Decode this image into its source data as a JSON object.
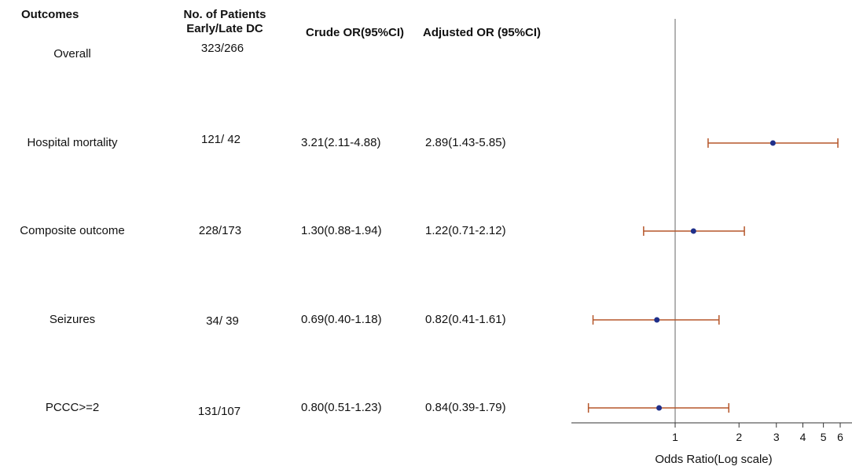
{
  "headers": {
    "outcomes": "Outcomes",
    "patients_line1": "No. of Patients",
    "patients_line2": "Early/Late DC",
    "crude": "Crude OR(95%CI)",
    "adjusted": "Adjusted OR (95%CI)"
  },
  "overall": {
    "label": "Overall",
    "patients": "323/266"
  },
  "rows": [
    {
      "label": "Hospital mortality",
      "patients": "121/ 42",
      "crude": "3.21(2.11-4.88)",
      "adjusted": "2.89(1.43-5.85)"
    },
    {
      "label": "Composite outcome",
      "patients": "228/173",
      "crude": "1.30(0.88-1.94)",
      "adjusted": "1.22(0.71-2.12)"
    },
    {
      "label": "Seizures",
      "patients": "34/ 39",
      "crude": "0.69(0.40-1.18)",
      "adjusted": "0.82(0.41-1.61)"
    },
    {
      "label": "PCCC>=2",
      "patients": "131/107",
      "crude": "0.80(0.51-1.23)",
      "adjusted": "0.84(0.39-1.79)"
    }
  ],
  "chart_data": {
    "type": "forest",
    "xlabel": "Odds Ratio(Log scale)",
    "x_scale": "log",
    "x_ticks": [
      1,
      2,
      3,
      4,
      5,
      6
    ],
    "xlim": [
      0.37,
      6.5
    ],
    "reference_line": 1,
    "categories": [
      "Hospital mortality",
      "Composite outcome",
      "Seizures",
      "PCCC>=2"
    ],
    "estimates": [
      2.89,
      1.22,
      0.82,
      0.84
    ],
    "lower": [
      1.43,
      0.71,
      0.41,
      0.39
    ],
    "upper": [
      5.85,
      2.12,
      1.61,
      1.79
    ],
    "point_color": "#1f2f8a",
    "ci_color": "#b5562a",
    "ref_line_color": "#999999"
  }
}
